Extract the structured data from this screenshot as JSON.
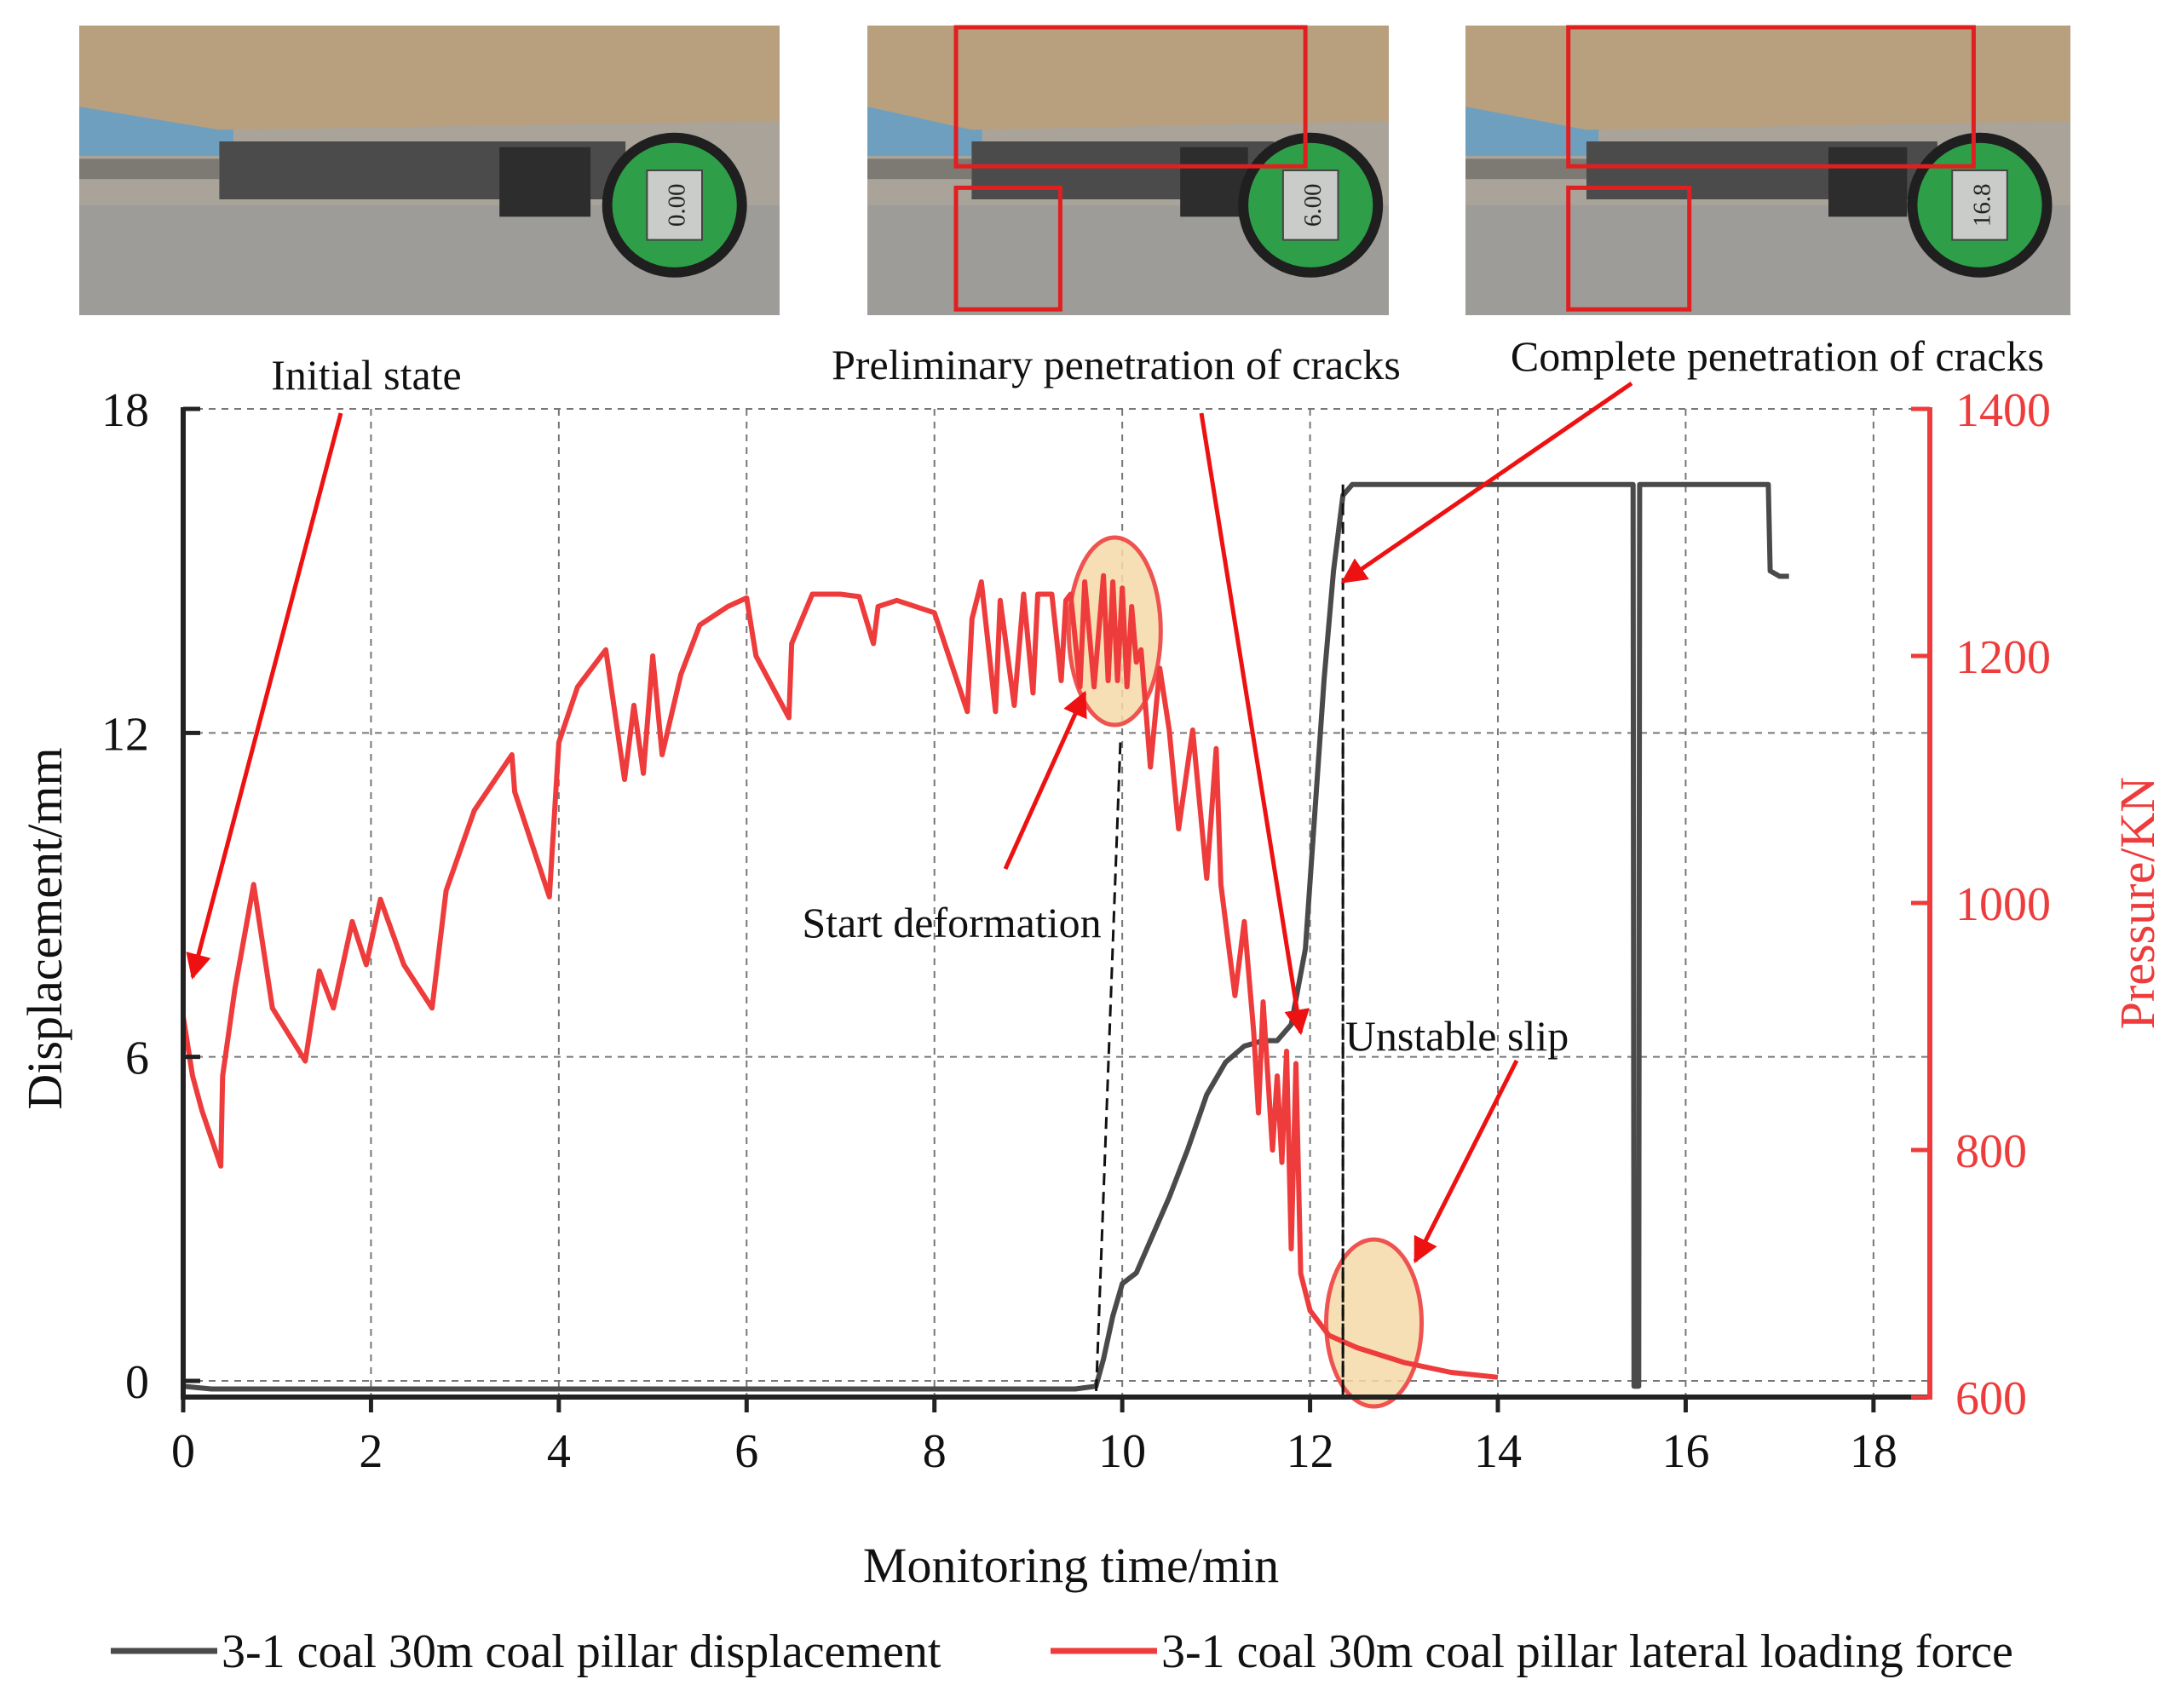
{
  "figure": {
    "photos": [
      {
        "label": "",
        "gauge_reading": "0.00",
        "regions": []
      },
      {
        "label": "",
        "gauge_reading": "6.00",
        "regions": [
          "top",
          "bottom-left"
        ]
      },
      {
        "label": "",
        "gauge_reading": "16.8",
        "regions": [
          "top",
          "bottom-left"
        ]
      }
    ],
    "annotations": {
      "initial": "Initial state",
      "preliminary": "Preliminary penetration of cracks",
      "complete": "Complete penetration of cracks",
      "start": "Start deformation",
      "unstable": "Unstable slip"
    },
    "legend": {
      "displacement": "3-1 coal 30m coal pillar displacement",
      "force": "3-1 coal 30m coal pillar lateral loading force"
    }
  },
  "colors": {
    "displacement": "#4a4a4a",
    "force": "#ee3b3b",
    "arrow": "#ee1111",
    "highlight_fill": "#f5d9a8",
    "highlight_stroke": "#ef5350",
    "photo_box": "#e02020"
  },
  "chart_data": {
    "type": "line",
    "xlabel": "Monitoring time/min",
    "ylabel": "Displacement/mm",
    "y2label": "Pressure/KN",
    "xlim": [
      0,
      18.6
    ],
    "ylim": [
      -0.3,
      18
    ],
    "y2lim": [
      600,
      1400
    ],
    "xticks": [
      0,
      2,
      4,
      6,
      8,
      10,
      12,
      14,
      16,
      18
    ],
    "yticks": [
      0,
      6,
      12,
      18
    ],
    "y2ticks": [
      600,
      800,
      1000,
      1200,
      1400
    ],
    "grid": true,
    "legend_position": "bottom",
    "series": [
      {
        "name": "3-1 coal 30m coal pillar displacement",
        "axis": "left",
        "x": [
          0,
          0.3,
          1,
          2,
          3,
          4,
          5,
          6,
          7,
          8,
          9,
          9.5,
          9.72,
          9.8,
          9.9,
          10.0,
          10.15,
          10.3,
          10.5,
          10.7,
          10.9,
          11.1,
          11.3,
          11.5,
          11.65,
          11.8,
          11.95,
          12.05,
          12.15,
          12.25,
          12.35,
          12.45,
          13,
          14,
          15,
          15.44,
          15.45,
          15.5,
          15.51,
          16,
          16.5,
          16.88,
          16.9,
          17.0,
          17.1
        ],
        "y": [
          -0.1,
          -0.15,
          -0.15,
          -0.15,
          -0.15,
          -0.15,
          -0.15,
          -0.15,
          -0.15,
          -0.15,
          -0.15,
          -0.15,
          -0.1,
          0.4,
          1.2,
          1.8,
          2.0,
          2.6,
          3.4,
          4.3,
          5.3,
          5.9,
          6.2,
          6.3,
          6.3,
          6.6,
          8.0,
          10.5,
          13.0,
          15.0,
          16.4,
          16.6,
          16.6,
          16.6,
          16.6,
          16.6,
          -0.1,
          -0.1,
          16.6,
          16.6,
          16.6,
          16.6,
          15.0,
          14.9,
          14.9
        ]
      },
      {
        "name": "3-1 coal 30m coal pillar lateral loading force",
        "axis": "right",
        "x": [
          0,
          0.1,
          0.2,
          0.4,
          0.42,
          0.55,
          0.75,
          0.95,
          1.3,
          1.45,
          1.6,
          1.8,
          1.95,
          2.1,
          2.35,
          2.65,
          2.8,
          3.1,
          3.5,
          3.53,
          3.9,
          4.0,
          4.2,
          4.5,
          4.7,
          4.8,
          4.9,
          5.0,
          5.1,
          5.3,
          5.5,
          5.8,
          6.0,
          6.1,
          6.45,
          6.48,
          6.7,
          7.0,
          7.2,
          7.35,
          7.4,
          7.6,
          8.0,
          8.35,
          8.4,
          8.5,
          8.65,
          8.7,
          8.85,
          8.95,
          9.05,
          9.1,
          9.25,
          9.35,
          9.4,
          9.45,
          9.55,
          9.6,
          9.7,
          9.8,
          9.85,
          9.9,
          9.95,
          10.0,
          10.05,
          10.1,
          10.15,
          10.2,
          10.3,
          10.4,
          10.5,
          10.6,
          10.75,
          10.9,
          11.0,
          11.05,
          11.2,
          11.3,
          11.4,
          11.45,
          11.5,
          11.55,
          11.6,
          11.65,
          11.7,
          11.75,
          11.8,
          11.85,
          11.9,
          12.0,
          12.2,
          12.5,
          13.0,
          13.5,
          14.0
        ],
        "y": [
          908,
          860,
          832,
          787,
          860,
          930,
          1015,
          915,
          872,
          945,
          915,
          985,
          950,
          1003,
          950,
          915,
          1010,
          1075,
          1120,
          1090,
          1005,
          1130,
          1175,
          1205,
          1100,
          1160,
          1105,
          1200,
          1120,
          1185,
          1225,
          1240,
          1247,
          1200,
          1150,
          1210,
          1250,
          1250,
          1248,
          1210,
          1240,
          1245,
          1235,
          1155,
          1230,
          1260,
          1155,
          1245,
          1160,
          1250,
          1170,
          1250,
          1250,
          1180,
          1245,
          1250,
          1175,
          1260,
          1175,
          1265,
          1180,
          1260,
          1180,
          1255,
          1175,
          1240,
          1195,
          1205,
          1110,
          1190,
          1140,
          1060,
          1140,
          1020,
          1125,
          1015,
          925,
          985,
          895,
          830,
          920,
          860,
          800,
          860,
          790,
          880,
          720,
          870,
          700,
          670,
          650,
          640,
          628,
          620,
          616
        ]
      }
    ]
  }
}
